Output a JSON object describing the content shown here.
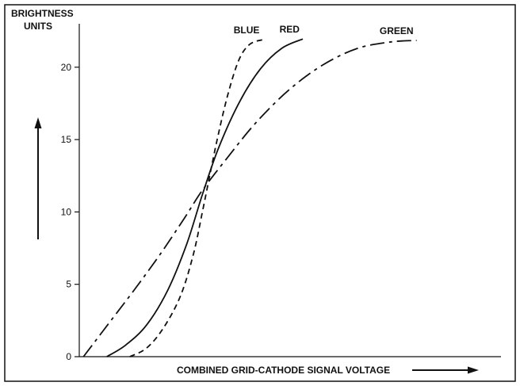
{
  "chart_data": {
    "type": "line",
    "title": "",
    "ylabel": "BRIGHTNESS UNITS",
    "ylabel_lines": [
      "BRIGHTNESS",
      "UNITS"
    ],
    "xlabel": "COMBINED GRID-CATHODE SIGNAL VOLTAGE",
    "ylim": [
      0,
      23
    ],
    "xlim": [
      0,
      10
    ],
    "yticks": [
      "0",
      "5",
      "10",
      "15",
      "20"
    ],
    "ytick_values": [
      0,
      5,
      10,
      15,
      20
    ],
    "series": [
      {
        "name": "BLUE",
        "color": "#111111",
        "style": "dashed",
        "points": [
          [
            1.2,
            0
          ],
          [
            1.6,
            0.6
          ],
          [
            2.0,
            2.0
          ],
          [
            2.4,
            4.2
          ],
          [
            2.7,
            7.0
          ],
          [
            2.92,
            10.0
          ],
          [
            3.1,
            12.6
          ],
          [
            3.3,
            15.4
          ],
          [
            3.55,
            18.4
          ],
          [
            3.8,
            20.6
          ],
          [
            4.05,
            21.6
          ],
          [
            4.35,
            21.9
          ]
        ]
      },
      {
        "name": "RED",
        "color": "#111111",
        "style": "solid",
        "points": [
          [
            0.65,
            0
          ],
          [
            1.1,
            0.8
          ],
          [
            1.6,
            2.2
          ],
          [
            2.1,
            4.6
          ],
          [
            2.55,
            7.8
          ],
          [
            2.92,
            11.2
          ],
          [
            3.3,
            14.4
          ],
          [
            3.8,
            17.6
          ],
          [
            4.3,
            19.9
          ],
          [
            4.8,
            21.3
          ],
          [
            5.3,
            21.95
          ]
        ]
      },
      {
        "name": "GREEN",
        "color": "#111111",
        "style": "dashdot",
        "points": [
          [
            0.1,
            0
          ],
          [
            0.7,
            2.3
          ],
          [
            1.3,
            4.6
          ],
          [
            1.9,
            7.0
          ],
          [
            2.5,
            9.6
          ],
          [
            2.92,
            11.5
          ],
          [
            3.5,
            13.7
          ],
          [
            4.2,
            16.2
          ],
          [
            5.0,
            18.5
          ],
          [
            5.8,
            20.2
          ],
          [
            6.6,
            21.3
          ],
          [
            7.4,
            21.75
          ],
          [
            8.0,
            21.85
          ]
        ]
      }
    ],
    "arrow_up": true,
    "arrow_right": true
  }
}
